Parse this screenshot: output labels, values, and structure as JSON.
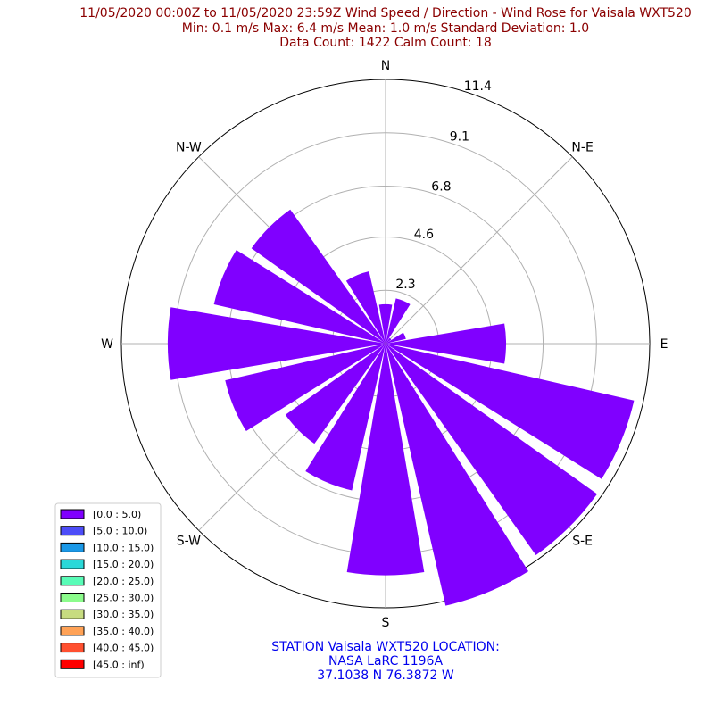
{
  "chart_data": {
    "type": "windrose",
    "title_lines": [
      "11/05/2020 00:00Z to 11/05/2020 23:59Z Wind Speed / Direction - Wind Rose for Vaisala WXT520",
      "Min: 0.1 m/s   Max: 6.4 m/s   Mean: 1.0 m/s  Standard Deviation: 1.0",
      "Data Count: 1422  Calm Count:  18"
    ],
    "directions": [
      {
        "key": "N",
        "label": "N",
        "angle": 0
      },
      {
        "key": "NE",
        "label": "N-E",
        "angle": 45
      },
      {
        "key": "E",
        "label": "E",
        "angle": 90
      },
      {
        "key": "SE",
        "label": "S-E",
        "angle": 135
      },
      {
        "key": "S",
        "label": "S",
        "angle": 180
      },
      {
        "key": "SW",
        "label": "S-W",
        "angle": 225
      },
      {
        "key": "W",
        "label": "W",
        "angle": 270
      },
      {
        "key": "NW",
        "label": "N-W",
        "angle": 315
      }
    ],
    "radial_ticks": [
      {
        "value": 2.3,
        "label": "2.3"
      },
      {
        "value": 4.6,
        "label": "4.6"
      },
      {
        "value": 6.8,
        "label": "6.8"
      },
      {
        "value": 9.1,
        "label": "9.1"
      },
      {
        "value": 11.4,
        "label": "11.4"
      }
    ],
    "rmax": 11.4,
    "sector_angles": [
      0,
      22.5,
      45,
      67.5,
      90,
      112.5,
      135,
      157.5,
      180,
      202.5,
      225,
      247.5,
      270,
      292.5,
      315,
      337.5
    ],
    "series": [
      {
        "name": "[0.0 : 5.0)",
        "values": [
          1.7,
          2.0,
          0.3,
          0.9,
          5.2,
          11.0,
          11.2,
          11.6,
          10.0,
          6.5,
          5.3,
          7.1,
          9.4,
          7.6,
          7.1,
          3.2
        ]
      },
      {
        "name": "[5.0 : 10.0)",
        "values": [
          0,
          0,
          0,
          0,
          0,
          0,
          0,
          0,
          0,
          0,
          0,
          0,
          0,
          0,
          0,
          0
        ]
      },
      {
        "name": "[10.0 : 15.0)",
        "values": [
          0,
          0,
          0,
          0,
          0,
          0,
          0,
          0,
          0,
          0,
          0,
          0,
          0,
          0,
          0,
          0
        ]
      },
      {
        "name": "[15.0 : 20.0)",
        "values": [
          0,
          0,
          0,
          0,
          0,
          0,
          0,
          0,
          0,
          0,
          0,
          0,
          0,
          0,
          0,
          0
        ]
      },
      {
        "name": "[20.0 : 25.0)",
        "values": [
          0,
          0,
          0,
          0,
          0,
          0,
          0,
          0,
          0,
          0,
          0,
          0,
          0,
          0,
          0,
          0
        ]
      },
      {
        "name": "[25.0 : 30.0)",
        "values": [
          0,
          0,
          0,
          0,
          0,
          0,
          0,
          0,
          0,
          0,
          0,
          0,
          0,
          0,
          0,
          0
        ]
      },
      {
        "name": "[30.0 : 35.0)",
        "values": [
          0,
          0,
          0,
          0,
          0,
          0,
          0,
          0,
          0,
          0,
          0,
          0,
          0,
          0,
          0,
          0
        ]
      },
      {
        "name": "[35.0 : 40.0)",
        "values": [
          0,
          0,
          0,
          0,
          0,
          0,
          0,
          0,
          0,
          0,
          0,
          0,
          0,
          0,
          0,
          0
        ]
      },
      {
        "name": "[40.0 : 45.0)",
        "values": [
          0,
          0,
          0,
          0,
          0,
          0,
          0,
          0,
          0,
          0,
          0,
          0,
          0,
          0,
          0,
          0
        ]
      },
      {
        "name": "[45.0 : inf)",
        "values": [
          0,
          0,
          0,
          0,
          0,
          0,
          0,
          0,
          0,
          0,
          0,
          0,
          0,
          0,
          0,
          0
        ]
      }
    ],
    "colors": [
      "#8000ff",
      "#4d4df8",
      "#1a98e7",
      "#2ad8d8",
      "#59fcb7",
      "#8cfc8c",
      "#c7dc80",
      "#ffa256",
      "#ff5030",
      "#ff0000"
    ],
    "grid": true,
    "legend_position": "lower-left"
  },
  "station_lines": [
    "STATION Vaisala WXT520 LOCATION:",
    "NASA LaRC 1196A",
    "37.1038 N 76.3872 W"
  ]
}
